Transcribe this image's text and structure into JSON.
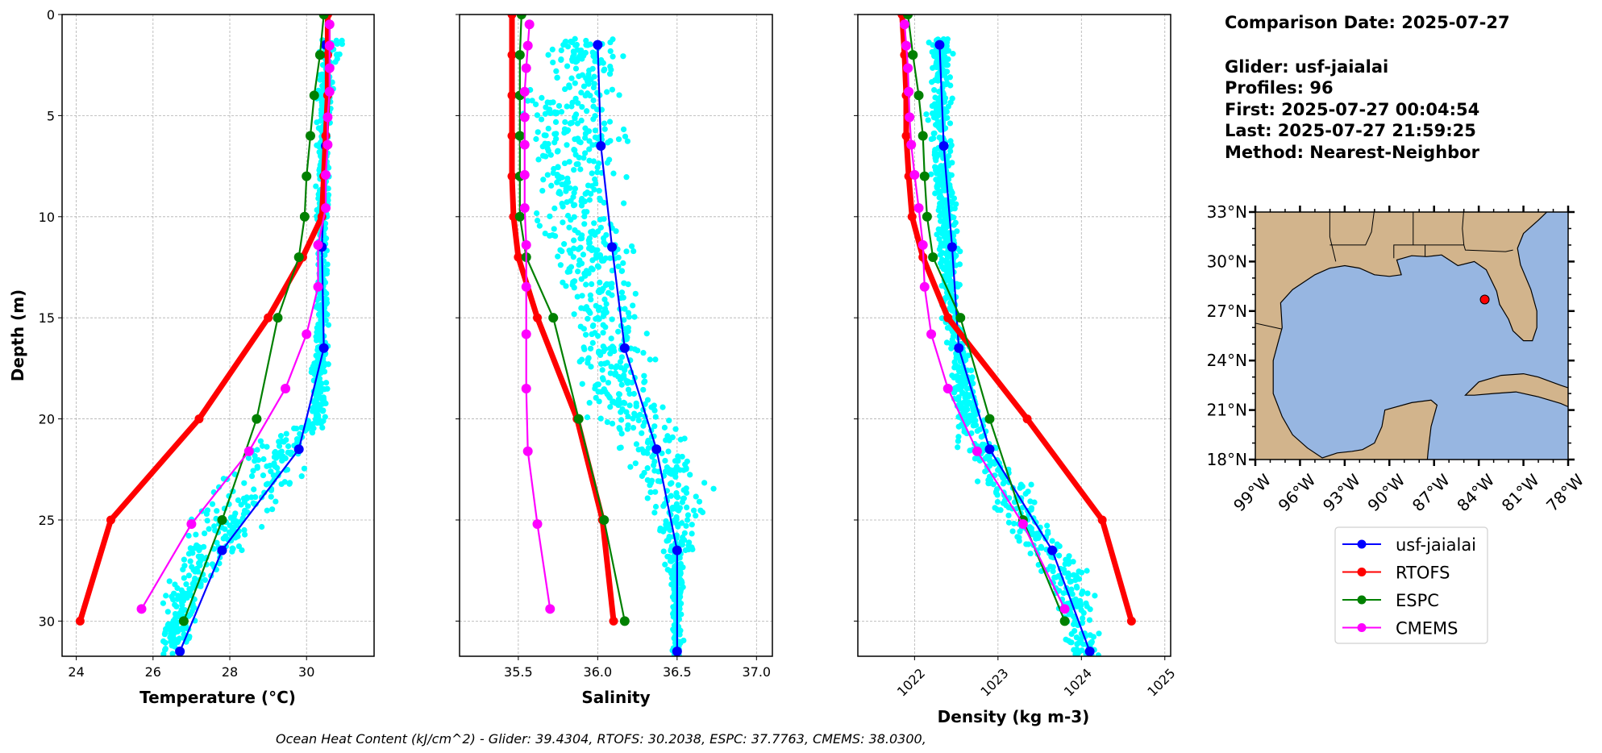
{
  "info": {
    "comparison_date": "Comparison Date: 2025-07-27",
    "glider": "Glider: usf-jaialai",
    "profiles": "Profiles: 96",
    "first": "First: 2025-07-27 00:04:54",
    "last": "Last: 2025-07-27 21:59:25",
    "method": "Method: Nearest-Neighbor"
  },
  "caption": "Ocean Heat Content (kJ/cm^2) - Glider: 39.4304,  RTOFS: 30.2038,  ESPC: 37.7763,  CMEMS: 38.0300,",
  "legend": [
    {
      "name": "usf-jaialai",
      "color": "#0000ff"
    },
    {
      "name": "RTOFS",
      "color": "#ff0000"
    },
    {
      "name": "ESPC",
      "color": "#008000"
    },
    {
      "name": "CMEMS",
      "color": "#ff00ff"
    }
  ],
  "colors": {
    "glider_raw": "#00ffff",
    "grid": "#b0b0b0"
  },
  "map": {
    "lon_range": [
      -99,
      -78
    ],
    "lat_range": [
      18,
      33
    ],
    "lon_ticks": [
      -99,
      -96,
      -93,
      -90,
      -87,
      -84,
      -81,
      -78
    ],
    "lon_tick_labels": [
      "99°W",
      "96°W",
      "93°W",
      "90°W",
      "87°W",
      "84°W",
      "81°W",
      "78°W"
    ],
    "lat_ticks": [
      18,
      21,
      24,
      27,
      30,
      33
    ],
    "lat_tick_labels": [
      "18°N",
      "21°N",
      "24°N",
      "27°N",
      "30°N",
      "33°N"
    ],
    "glider_position": {
      "lon": -83.6,
      "lat": 27.7
    },
    "land_color": "#d2b48c",
    "ocean_color": "#97b6e1",
    "marker_color": "#ff0000"
  },
  "chart_data": [
    {
      "type": "line",
      "xlabel": "Temperature (°C)",
      "ylabel": "Depth (m)",
      "xlim": [
        23.63,
        31.76
      ],
      "ylim": [
        31.74,
        0
      ],
      "xticks": [
        24,
        26,
        28,
        30
      ],
      "xtick_labels": [
        "24",
        "26",
        "28",
        "30"
      ],
      "yticks": [
        0,
        5,
        10,
        15,
        20,
        25,
        30
      ],
      "ytick_labels": [
        "0",
        "5",
        "10",
        "15",
        "20",
        "25",
        "30"
      ],
      "grid": true,
      "series": [
        {
          "name": "usf-jaialai",
          "depth": [
            1.5,
            6.5,
            11.5,
            16.5,
            21.5,
            26.5,
            31.5
          ],
          "values": [
            30.5,
            30.5,
            30.4,
            30.45,
            29.8,
            27.8,
            26.7
          ]
        },
        {
          "name": "RTOFS",
          "depth": [
            0,
            2,
            4,
            6,
            8,
            10,
            12,
            15,
            20,
            25,
            30
          ],
          "values": [
            30.55,
            30.55,
            30.55,
            30.5,
            30.45,
            30.4,
            29.9,
            29.0,
            27.2,
            24.9,
            24.1
          ]
        },
        {
          "name": "ESPC",
          "depth": [
            0,
            2,
            4,
            6,
            8,
            10,
            12,
            15,
            20,
            25,
            30
          ],
          "values": [
            30.45,
            30.35,
            30.2,
            30.1,
            30.0,
            29.95,
            29.8,
            29.25,
            28.7,
            27.8,
            26.8
          ]
        },
        {
          "name": "CMEMS",
          "depth": [
            0.49,
            1.54,
            2.65,
            3.82,
            5.08,
            6.44,
            7.93,
            9.57,
            11.4,
            13.47,
            15.81,
            18.5,
            21.6,
            25.2,
            29.4
          ],
          "values": [
            30.6,
            30.6,
            30.6,
            30.6,
            30.55,
            30.55,
            30.5,
            30.5,
            30.3,
            30.3,
            30.0,
            29.45,
            28.5,
            27.0,
            25.7
          ]
        }
      ],
      "glider_raw_envelope": {
        "depth": [
          1.2,
          3,
          5,
          10,
          15,
          20,
          21,
          22,
          24,
          26,
          28,
          30,
          31.74
        ],
        "min": [
          30.2,
          30.2,
          30.2,
          30.2,
          30.2,
          30.0,
          28.5,
          28.0,
          27.0,
          26.5,
          26.2,
          26.0,
          25.9
        ],
        "max": [
          31.2,
          30.8,
          30.7,
          30.6,
          30.6,
          30.6,
          30.6,
          30.5,
          29.8,
          28.8,
          27.8,
          27.3,
          27.0
        ]
      }
    },
    {
      "type": "line",
      "xlabel": "Salinity",
      "xlim": [
        35.13,
        37.1
      ],
      "ylim": [
        31.74,
        0
      ],
      "xticks": [
        35.5,
        36.0,
        36.5,
        37.0
      ],
      "xtick_labels": [
        "35.5",
        "36.0",
        "36.5",
        "37.0"
      ],
      "yticks": [
        0,
        5,
        10,
        15,
        20,
        25,
        30
      ],
      "grid": true,
      "series": [
        {
          "name": "usf-jaialai",
          "depth": [
            1.5,
            6.5,
            11.5,
            16.5,
            21.5,
            26.5,
            31.5
          ],
          "values": [
            36.0,
            36.02,
            36.09,
            36.17,
            36.37,
            36.5,
            36.5
          ]
        },
        {
          "name": "RTOFS",
          "depth": [
            0,
            2,
            4,
            6,
            8,
            10,
            12,
            15,
            20,
            25,
            30
          ],
          "values": [
            35.46,
            35.46,
            35.46,
            35.46,
            35.46,
            35.47,
            35.5,
            35.62,
            35.87,
            36.03,
            36.1
          ]
        },
        {
          "name": "ESPC",
          "depth": [
            0,
            2,
            4,
            6,
            8,
            10,
            12,
            15,
            20,
            25,
            30
          ],
          "values": [
            35.52,
            35.51,
            35.51,
            35.51,
            35.51,
            35.51,
            35.55,
            35.72,
            35.88,
            36.04,
            36.17
          ]
        },
        {
          "name": "CMEMS",
          "depth": [
            0.49,
            1.54,
            2.65,
            3.82,
            5.08,
            6.44,
            7.93,
            9.57,
            11.4,
            13.47,
            15.81,
            18.5,
            21.6,
            25.2,
            29.4
          ],
          "values": [
            35.57,
            35.56,
            35.55,
            35.54,
            35.54,
            35.54,
            35.54,
            35.54,
            35.55,
            35.55,
            35.55,
            35.55,
            35.56,
            35.62,
            35.7
          ]
        }
      ],
      "glider_raw_envelope": {
        "depth": [
          1.2,
          5,
          10,
          15,
          20,
          22,
          24,
          26,
          28,
          31.74
        ],
        "min": [
          35.6,
          35.4,
          35.5,
          35.7,
          35.9,
          36.0,
          36.2,
          36.35,
          36.45,
          36.45
        ],
        "max": [
          36.3,
          36.3,
          36.3,
          36.35,
          36.5,
          36.8,
          36.8,
          36.7,
          36.55,
          36.55
        ]
      }
    },
    {
      "type": "line",
      "xlabel": "Density (kg m-3)",
      "xlim": [
        1021.32,
        1025.07
      ],
      "ylim": [
        31.74,
        0
      ],
      "xticks": [
        1022,
        1023,
        1024,
        1025
      ],
      "xtick_labels": [
        "1022",
        "1023",
        "1024",
        "1025"
      ],
      "yticks": [
        0,
        5,
        10,
        15,
        20,
        25,
        30
      ],
      "grid": true,
      "series": [
        {
          "name": "usf-jaialai",
          "depth": [
            1.5,
            6.5,
            11.5,
            16.5,
            21.5,
            26.5,
            31.5
          ],
          "values": [
            1022.3,
            1022.35,
            1022.45,
            1022.53,
            1022.9,
            1023.65,
            1024.1
          ]
        },
        {
          "name": "RTOFS",
          "depth": [
            0,
            2,
            4,
            6,
            8,
            10,
            12,
            15,
            20,
            25,
            30
          ],
          "values": [
            1021.85,
            1021.88,
            1021.9,
            1021.9,
            1021.93,
            1021.97,
            1022.1,
            1022.4,
            1023.35,
            1024.25,
            1024.6
          ]
        },
        {
          "name": "ESPC",
          "depth": [
            0,
            2,
            4,
            6,
            8,
            10,
            12,
            15,
            20,
            25,
            30
          ],
          "values": [
            1021.92,
            1021.98,
            1022.05,
            1022.1,
            1022.12,
            1022.15,
            1022.22,
            1022.55,
            1022.9,
            1023.3,
            1023.8
          ]
        },
        {
          "name": "CMEMS",
          "depth": [
            0.49,
            1.54,
            2.65,
            3.82,
            5.08,
            6.44,
            7.93,
            9.57,
            11.4,
            13.47,
            15.81,
            18.5,
            21.6,
            25.2,
            29.4
          ],
          "values": [
            1021.88,
            1021.9,
            1021.92,
            1021.93,
            1021.94,
            1021.96,
            1022.0,
            1022.05,
            1022.1,
            1022.12,
            1022.2,
            1022.4,
            1022.75,
            1023.3,
            1023.8
          ]
        }
      ],
      "glider_raw_envelope": {
        "depth": [
          1.2,
          5,
          10,
          15,
          20,
          22,
          25,
          28,
          31.74
        ],
        "min": [
          1022.1,
          1022.1,
          1022.2,
          1022.3,
          1022.4,
          1022.5,
          1022.9,
          1023.5,
          1023.8
        ],
        "max": [
          1022.5,
          1022.5,
          1022.55,
          1022.6,
          1022.9,
          1023.2,
          1023.8,
          1024.2,
          1024.3
        ]
      }
    }
  ]
}
